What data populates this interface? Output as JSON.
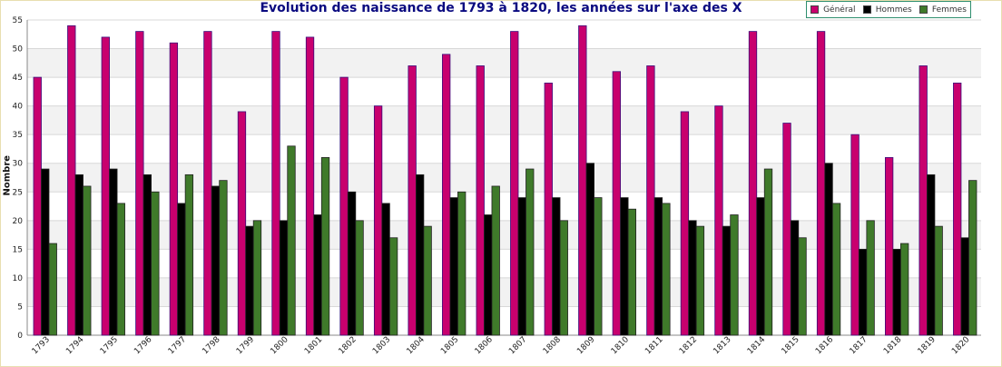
{
  "chart_data": {
    "type": "bar",
    "title": "Evolution des naissance de 1793 à 1820, les années sur l'axe des X",
    "ylabel": "Nombre",
    "xlabel": "",
    "ylim": [
      0,
      55
    ],
    "yticks": [
      0,
      5,
      10,
      15,
      20,
      25,
      30,
      35,
      40,
      45,
      50,
      55
    ],
    "grid": true,
    "legend_position": "top-right",
    "categories": [
      "1793",
      "1794",
      "1795",
      "1796",
      "1797",
      "1798",
      "1799",
      "1800",
      "1801",
      "1802",
      "1803",
      "1804",
      "1805",
      "1806",
      "1807",
      "1808",
      "1809",
      "1810",
      "1811",
      "1812",
      "1813",
      "1814",
      "1815",
      "1816",
      "1817",
      "1818",
      "1819",
      "1820"
    ],
    "series": [
      {
        "name": "Général",
        "color": "#c8006e",
        "values": [
          45,
          54,
          52,
          53,
          51,
          53,
          39,
          53,
          52,
          45,
          40,
          47,
          49,
          47,
          53,
          44,
          54,
          46,
          47,
          39,
          40,
          53,
          37,
          53,
          35,
          31,
          47,
          44
        ]
      },
      {
        "name": "Hommes",
        "color": "#000000",
        "values": [
          29,
          28,
          29,
          28,
          23,
          26,
          19,
          20,
          21,
          25,
          23,
          28,
          24,
          21,
          24,
          24,
          30,
          24,
          24,
          20,
          19,
          24,
          20,
          30,
          15,
          15,
          28,
          17
        ]
      },
      {
        "name": "Femmes",
        "color": "#3f7a2a",
        "values": [
          16,
          26,
          23,
          25,
          28,
          27,
          20,
          33,
          31,
          20,
          17,
          19,
          25,
          26,
          29,
          20,
          24,
          22,
          23,
          19,
          21,
          29,
          17,
          23,
          20,
          16,
          19,
          27
        ]
      }
    ]
  },
  "colors": {
    "title": "#0a0a80",
    "band": "#f2f2f2",
    "grid": "#d8d8d8",
    "legend_border": "#2f8f6e"
  }
}
